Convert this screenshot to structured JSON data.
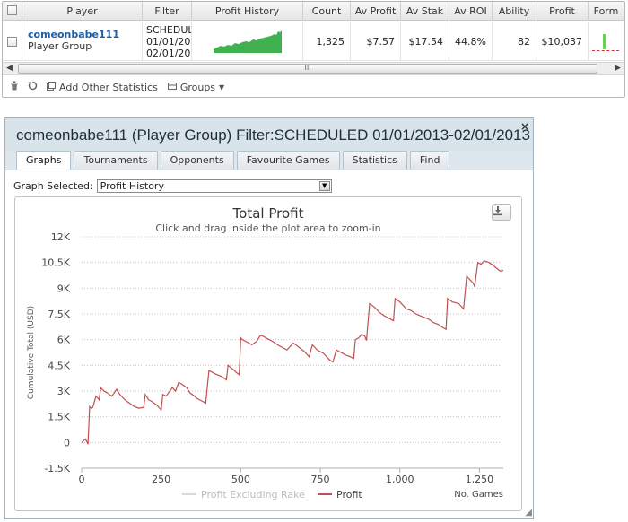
{
  "grid": {
    "headers": [
      "",
      "Player",
      "Filter",
      "Profit History",
      "Count",
      "Av Profit",
      "Av Stak",
      "Av ROI",
      "Ability",
      "Profit",
      "Form"
    ],
    "row": {
      "player_name": "comeonbabe111",
      "player_type": "Player Group",
      "filter_lines": [
        "SCHEDUL",
        "01/01/20",
        "02/01/20"
      ],
      "count": "1,325",
      "av_profit": "$7.57",
      "av_stake": "$17.54",
      "av_roi": "44.8%",
      "ability": "82",
      "profit": "$10,037"
    },
    "scroll_thumb_glyph": "III",
    "toolbar": {
      "add_stats_label": "Add Other Statistics",
      "groups_label": "Groups"
    }
  },
  "window": {
    "title": "comeonbabe111 (Player Group) Filter:SCHEDULED 01/01/2013-02/01/2013",
    "close_glyph": "×",
    "tabs": [
      "Graphs",
      "Tournaments",
      "Opponents",
      "Favourite Games",
      "Statistics",
      "Find"
    ],
    "active_tab": "Graphs",
    "graph_selected_label": "Graph Selected:",
    "graph_selected_value": "Profit History"
  },
  "chart_data": {
    "type": "line",
    "title": "Total Profit",
    "subtitle": "Click and drag inside the plot area to zoom-in",
    "ylabel": "Cumulative Total (USD)",
    "xlabel": "No. Games",
    "ylim": [
      -1500,
      12000
    ],
    "xlim": [
      0,
      1325
    ],
    "y_ticks": [
      -1500,
      0,
      1500,
      3000,
      4500,
      6000,
      7500,
      9000,
      10500,
      12000
    ],
    "y_tick_labels": [
      "-1.5K",
      "0",
      "1.5K",
      "3K",
      "4.5K",
      "6K",
      "7.5K",
      "9K",
      "10.5K",
      "12K"
    ],
    "x_ticks": [
      0,
      250,
      500,
      750,
      1000,
      1250
    ],
    "x_tick_labels": [
      "0",
      "250",
      "500",
      "750",
      "1,000",
      "1,250"
    ],
    "grid": "horizontal dotted",
    "legend_position": "bottom-center",
    "series": [
      {
        "name": "Profit Excluding Rake",
        "color": "#d9d9d9",
        "values": []
      },
      {
        "name": "Profit",
        "color": "#c0504d",
        "x": [
          0,
          12,
          20,
          25,
          30,
          35,
          45,
          55,
          60,
          70,
          80,
          95,
          110,
          120,
          135,
          150,
          165,
          180,
          195,
          200,
          210,
          220,
          235,
          250,
          255,
          265,
          285,
          295,
          305,
          315,
          330,
          340,
          355,
          360,
          370,
          380,
          390,
          400,
          420,
          440,
          455,
          460,
          470,
          480,
          485,
          495,
          500,
          505,
          520,
          535,
          550,
          560,
          565,
          580,
          600,
          620,
          645,
          665,
          680,
          700,
          715,
          725,
          740,
          760,
          770,
          780,
          790,
          800,
          815,
          830,
          845,
          855,
          860,
          870,
          880,
          890,
          895,
          905,
          920,
          935,
          950,
          970,
          980,
          985,
          1000,
          1010,
          1020,
          1035,
          1050,
          1070,
          1090,
          1105,
          1120,
          1135,
          1145,
          1150,
          1165,
          1185,
          1195,
          1200,
          1210,
          1220,
          1230,
          1235,
          1245,
          1255,
          1265,
          1280,
          1295,
          1305,
          1315,
          1325
        ],
        "values": [
          0,
          200,
          -100,
          2100,
          2000,
          2050,
          2700,
          2500,
          3200,
          3000,
          2900,
          2700,
          3100,
          2800,
          2500,
          2300,
          2100,
          2000,
          2050,
          2800,
          2500,
          2400,
          2200,
          1900,
          2800,
          2700,
          3200,
          3000,
          3500,
          3400,
          3200,
          2900,
          2700,
          2600,
          2500,
          2400,
          2300,
          4200,
          4000,
          3850,
          3650,
          4500,
          4350,
          4200,
          4100,
          3950,
          6100,
          6000,
          5850,
          5700,
          5900,
          6200,
          6250,
          6100,
          5900,
          5650,
          5400,
          5800,
          5600,
          5300,
          5000,
          5700,
          5400,
          5200,
          5000,
          4800,
          4700,
          5400,
          5250,
          5100,
          5000,
          4900,
          6000,
          6100,
          6300,
          6200,
          5950,
          8100,
          7900,
          7600,
          7400,
          7200,
          7100,
          8400,
          8200,
          8000,
          7800,
          7700,
          7500,
          7350,
          7200,
          7000,
          6900,
          6700,
          6600,
          8400,
          8200,
          8100,
          7900,
          7800,
          9700,
          9500,
          9300,
          9100,
          10500,
          10400,
          10600,
          10500,
          10300,
          10150,
          10000,
          10037
        ]
      }
    ]
  }
}
